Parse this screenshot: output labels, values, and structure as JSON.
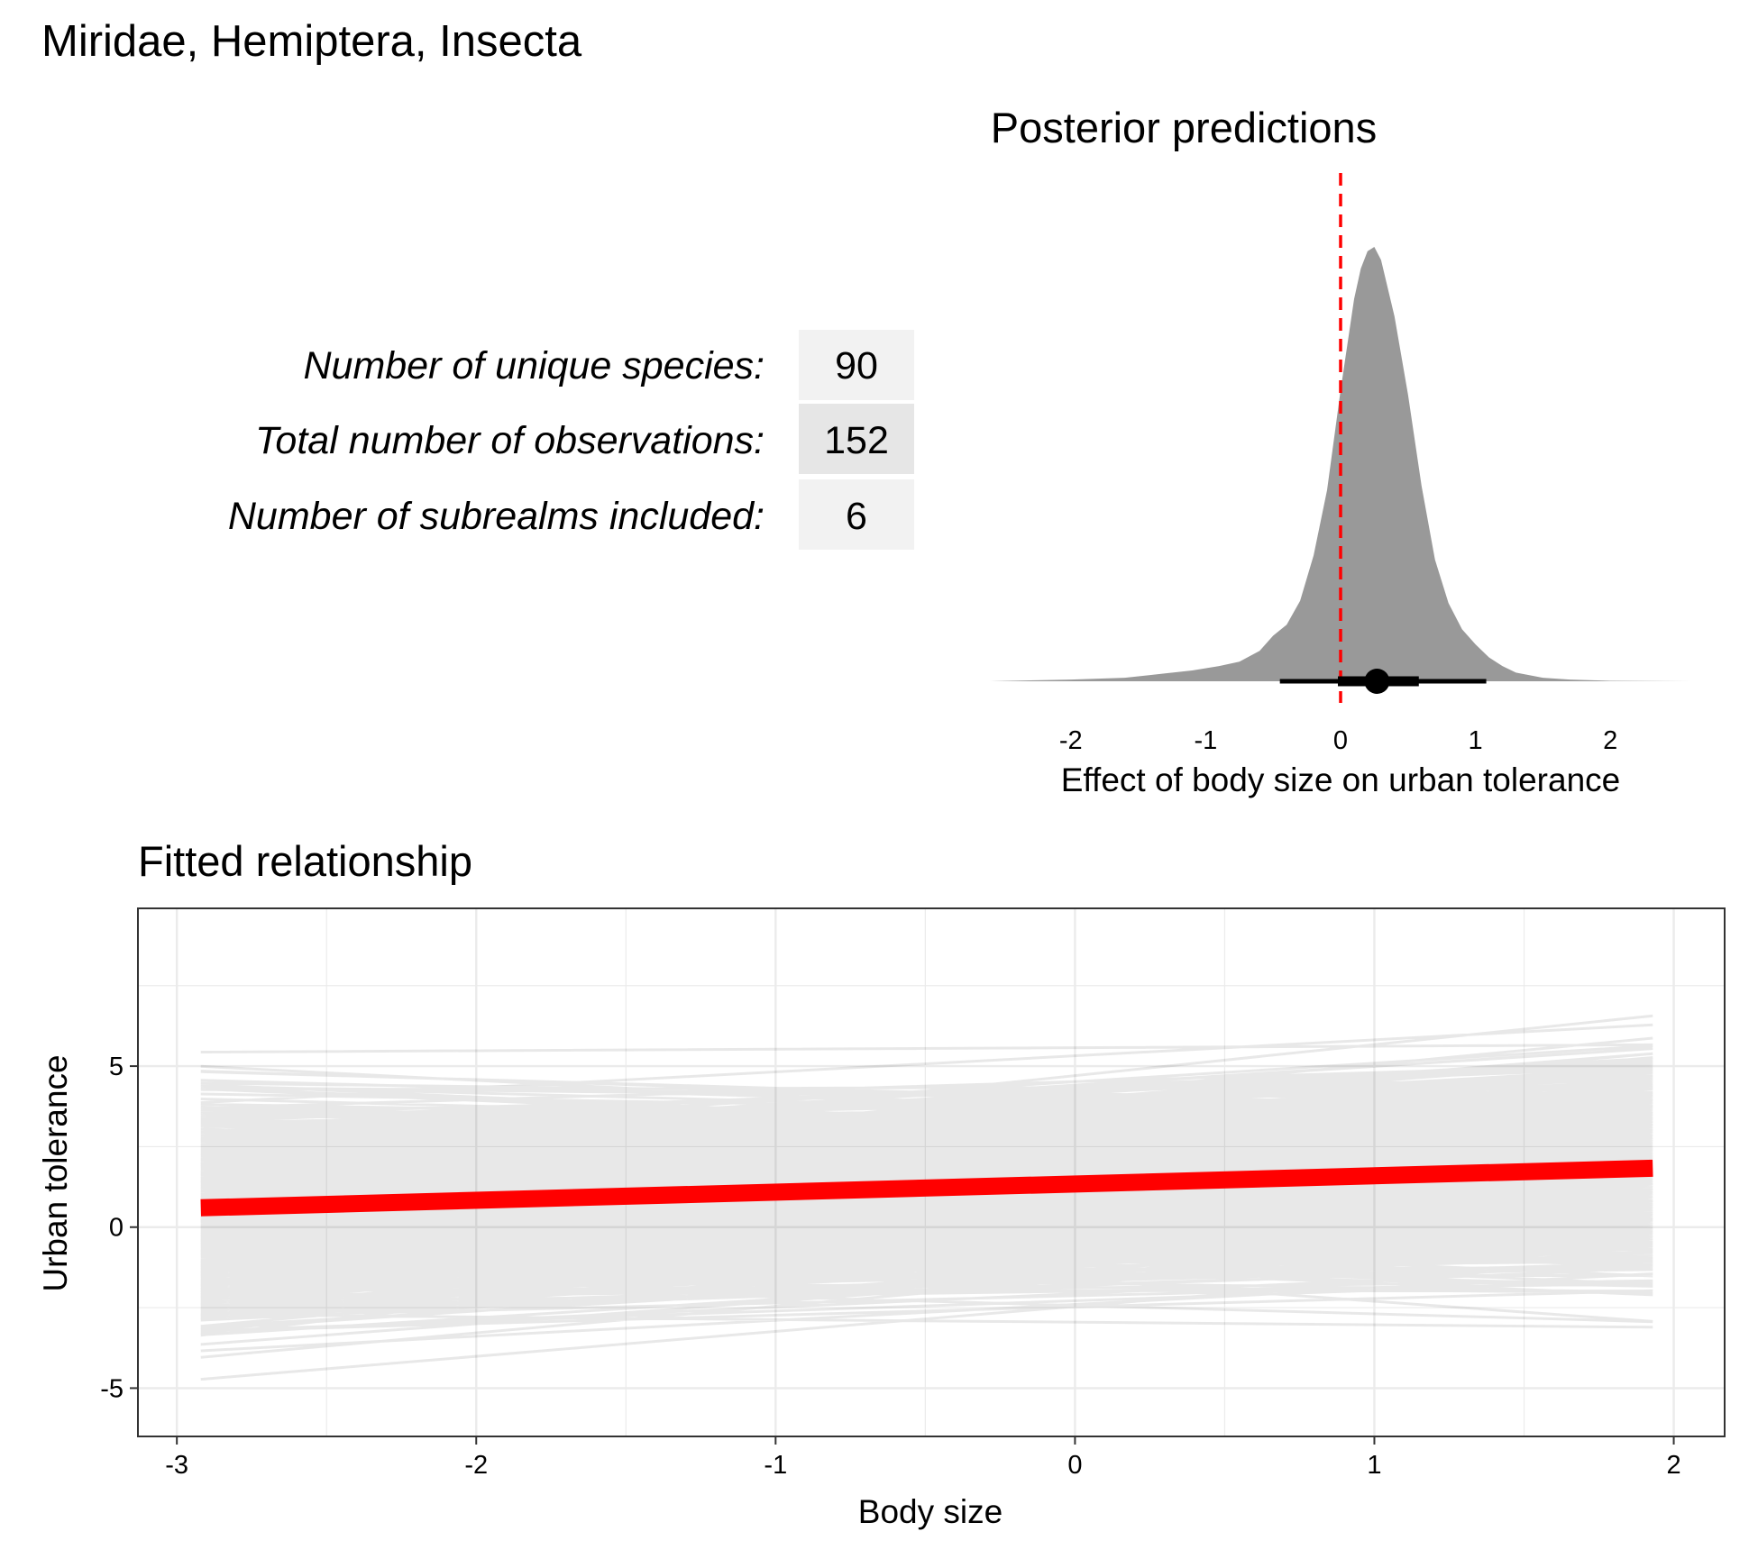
{
  "figure_title": "Miridae, Hemiptera, Insecta",
  "stats": [
    {
      "label": "Number of unique species:",
      "value": "90",
      "bg": "#f2f2f2"
    },
    {
      "label": "Total number of observations:",
      "value": "152",
      "bg": "#e6e6e6"
    },
    {
      "label": "Number of subrealms included:",
      "value": "6",
      "bg": "#f2f2f2"
    }
  ],
  "colors": {
    "red": "#ff0000",
    "density_fill": "#999999",
    "spaghetti": "#000000",
    "grid": "#ebebeb"
  },
  "chart_data": [
    {
      "type": "area",
      "title": "Posterior predictions",
      "xlabel": "Effect of body size on urban tolerance",
      "xlim": [
        -2.6,
        2.6
      ],
      "xticks": [
        -2,
        -1,
        0,
        1,
        2
      ],
      "xtick_labels": [
        "-2",
        "-1",
        "0",
        "1",
        "2"
      ],
      "grid": false,
      "density": {
        "x": [
          -2.6,
          -2.0,
          -1.6,
          -1.3,
          -1.1,
          -0.9,
          -0.75,
          -0.6,
          -0.5,
          -0.4,
          -0.3,
          -0.2,
          -0.1,
          0.0,
          0.1,
          0.15,
          0.2,
          0.25,
          0.3,
          0.4,
          0.5,
          0.6,
          0.7,
          0.8,
          0.9,
          1.0,
          1.1,
          1.2,
          1.3,
          1.5,
          1.7,
          2.0,
          2.6
        ],
        "y": [
          0.0,
          0.004,
          0.008,
          0.018,
          0.025,
          0.035,
          0.045,
          0.07,
          0.105,
          0.13,
          0.185,
          0.29,
          0.44,
          0.67,
          0.88,
          0.95,
          0.99,
          1.0,
          0.97,
          0.84,
          0.66,
          0.45,
          0.28,
          0.18,
          0.12,
          0.085,
          0.055,
          0.035,
          0.02,
          0.008,
          0.004,
          0.001,
          0.0
        ]
      },
      "point_estimate": 0.27,
      "interval_inner": [
        -0.02,
        0.58
      ],
      "interval_outer": [
        -0.45,
        1.08
      ],
      "reference_line_x": 0
    },
    {
      "type": "line",
      "title": "Fitted relationship",
      "xlabel": "Body size",
      "ylabel": "Urban tolerance",
      "xlim": [
        -3.13,
        2.17
      ],
      "ylim": [
        -6.5,
        9.9
      ],
      "xticks": [
        -3,
        -2,
        -1,
        0,
        1,
        2
      ],
      "xtick_labels": [
        "-3",
        "-2",
        "-1",
        "0",
        "1",
        "2"
      ],
      "yticks": [
        -5,
        0,
        5
      ],
      "ytick_labels": [
        "-5",
        "0",
        "5"
      ],
      "grid": true,
      "x_range": [
        -2.92,
        1.93
      ],
      "fitted_line": {
        "x": [
          -2.92,
          1.93
        ],
        "y": [
          0.6,
          1.83
        ]
      },
      "posterior_draws": {
        "count": 1000,
        "intercept_mean": 1.35,
        "intercept_sd": 1.6,
        "slope_mean": 0.27,
        "slope_sd": 0.28
      }
    }
  ]
}
